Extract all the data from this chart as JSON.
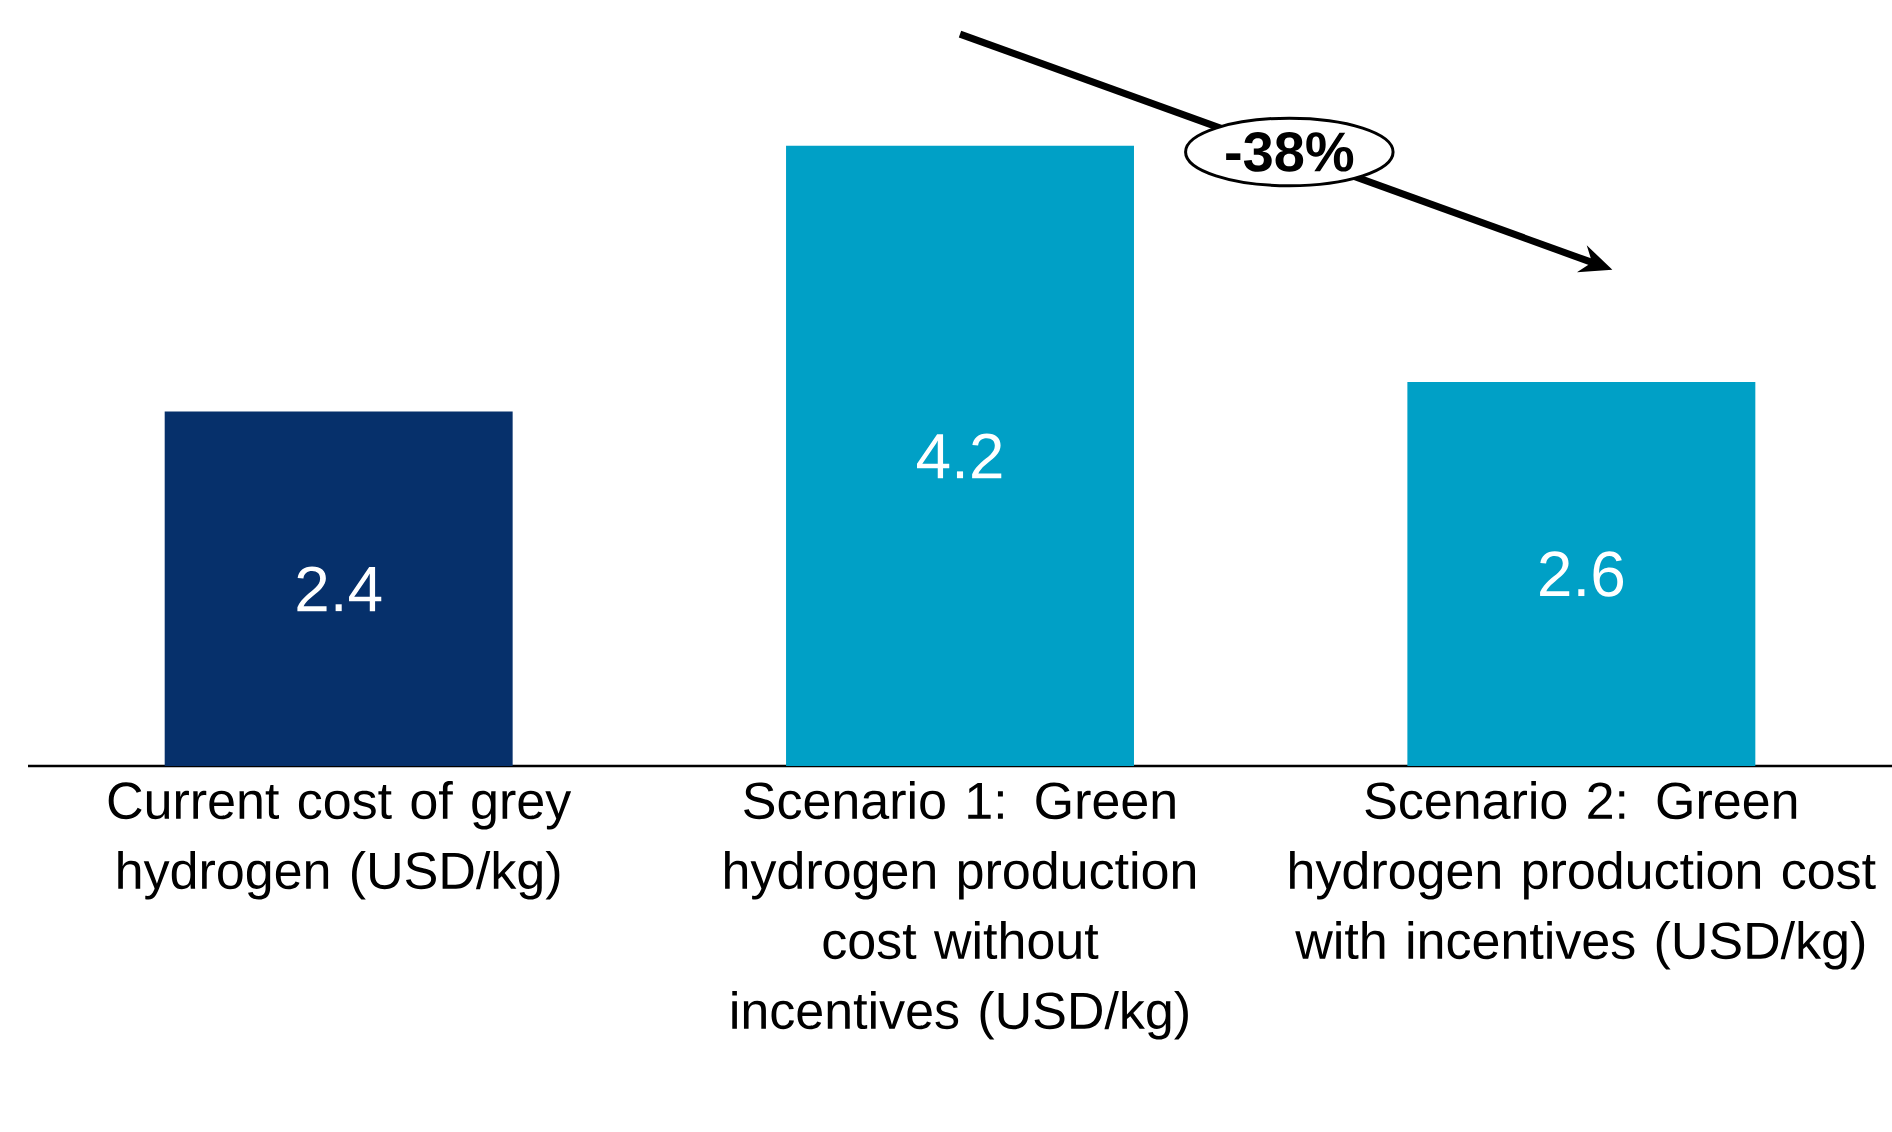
{
  "chart_data": {
    "type": "bar",
    "categories": [
      "Current cost of grey hydrogen (USD/kg)",
      "Scenario 1: Green hydrogen production cost without incentives (USD/kg)",
      "Scenario 2: Green hydrogen production cost with incentives (USD/kg)"
    ],
    "values": [
      2.4,
      4.2,
      2.6
    ],
    "colors": [
      "#06306b",
      "#00a0c6",
      "#00a0c6"
    ],
    "data_labels": true,
    "annotations": [
      "-38%"
    ]
  }
}
